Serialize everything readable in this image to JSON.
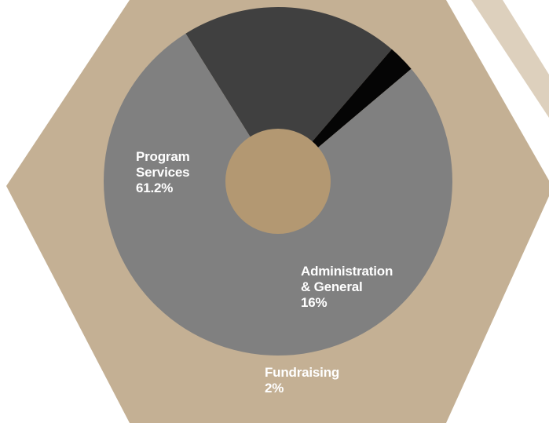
{
  "chart_data": {
    "type": "pie",
    "title": "",
    "labels": [
      {
        "lines": [
          "Program",
          "Services",
          "61.2%"
        ]
      },
      {
        "lines": [
          "Administration",
          "& General",
          "16%"
        ]
      },
      {
        "lines": [
          "Fundraising",
          "2%"
        ]
      }
    ],
    "slices": [
      {
        "name": "Program Services",
        "value": 61.2,
        "color": "#808080"
      },
      {
        "name": "Administration & General",
        "value": 16,
        "color": "#404040"
      },
      {
        "name": "Fundraising",
        "value": 2,
        "color": "#050505"
      }
    ]
  },
  "colors": {
    "hexagon_main": "#c4b094",
    "hexagon_back": "#ddd0bd",
    "donut_hole": "#b39872",
    "label_text": "#ffffff"
  }
}
